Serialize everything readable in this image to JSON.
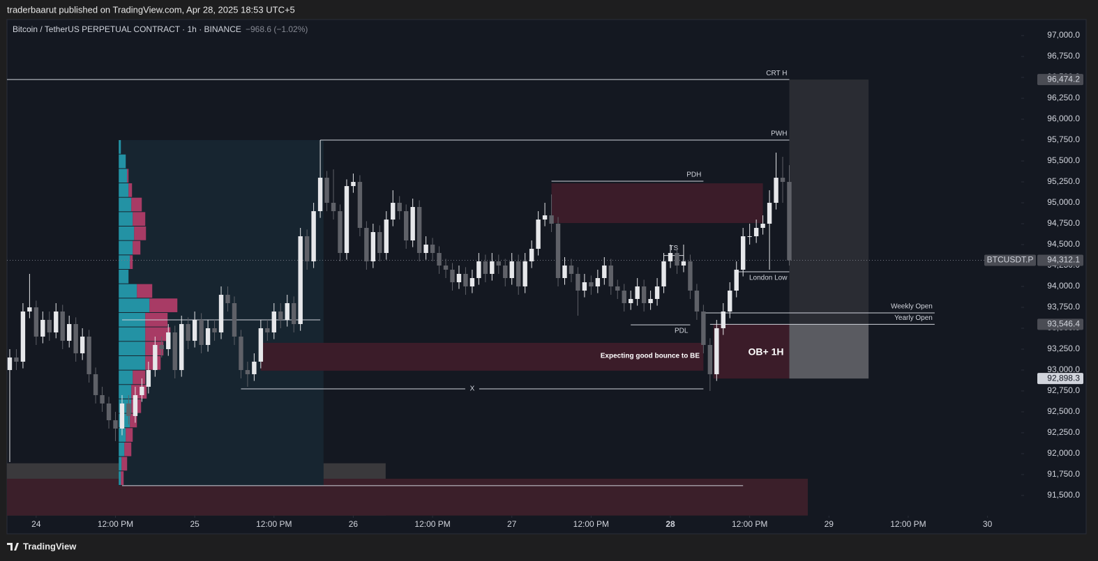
{
  "header": {
    "published": "traderbaarut published on TradingView.com, Apr 28, 2025 18:53 UTC+5"
  },
  "footer": {
    "brand": "TradingView"
  },
  "chart_data": {
    "type": "candlestick",
    "title": "Bitcoin / TetherUS PERPETUAL CONTRACT · 1h · BINANCE",
    "subtitle": "−968.6 (−1.02%)",
    "up_color": "#e6e7ea",
    "down_color": "#5f6168",
    "open": [
      93000,
      93150,
      93100,
      93700,
      93750,
      93400,
      93600,
      93450,
      93700,
      93350,
      93550,
      93200,
      93400,
      92950,
      92700,
      92600,
      92400,
      92300,
      92600,
      92450,
      92700,
      92800,
      93000,
      93300,
      93250,
      93450,
      93000,
      93550,
      93350,
      93600,
      93300,
      93500,
      93450,
      93900,
      93800,
      93400,
      93000,
      92950,
      93100,
      93500,
      93450,
      93700,
      93600,
      93800,
      93550,
      94600,
      94300,
      94900,
      95300,
      95000,
      94900,
      94400,
      95200,
      95250,
      94700,
      94300,
      94650,
      94400,
      94800,
      95000,
      94900,
      94550,
      94950,
      94400,
      94500,
      94400,
      94250,
      94200,
      94050,
      94150,
      94000,
      94100,
      94300,
      94150,
      94300,
      94250,
      94100,
      94300,
      94000,
      94300,
      94450,
      94800,
      94850,
      94750,
      94100,
      94250,
      94150,
      93950,
      94050,
      94000,
      94100,
      94250,
      94000,
      93950,
      93800,
      93850,
      94000,
      93800,
      93850,
      94000,
      94300,
      94400,
      94250,
      94300,
      93950,
      93700,
      93300,
      92950,
      93500,
      93700,
      93950,
      94200,
      94600,
      94600,
      94700,
      94750,
      95000,
      95300,
      95250
    ],
    "high": [
      93250,
      93250,
      93800,
      94150,
      93830,
      93700,
      93700,
      93800,
      93780,
      93650,
      93630,
      93500,
      93480,
      93030,
      92800,
      92680,
      92500,
      92700,
      92700,
      92800,
      92900,
      93100,
      93400,
      93400,
      93550,
      93530,
      93650,
      93630,
      93700,
      93680,
      93600,
      93600,
      94000,
      94000,
      93880,
      93480,
      93100,
      93200,
      93600,
      93600,
      93800,
      93800,
      93900,
      93880,
      94700,
      94680,
      95000,
      95750,
      95380,
      95400,
      94980,
      95280,
      95350,
      95330,
      94780,
      94750,
      94730,
      94900,
      95150,
      95080,
      94980,
      95050,
      95030,
      94600,
      94580,
      94480,
      94330,
      94280,
      94250,
      94230,
      94200,
      94400,
      94380,
      94400,
      94380,
      94330,
      94400,
      94380,
      94400,
      94550,
      94900,
      95000,
      95100,
      94830,
      94350,
      94330,
      94230,
      94150,
      94130,
      94200,
      94350,
      94330,
      94080,
      94030,
      93950,
      94100,
      94080,
      93950,
      94100,
      94400,
      94500,
      94480,
      94500,
      94380,
      94030,
      93780,
      93380,
      93600,
      93800,
      94050,
      94300,
      94700,
      94750,
      94800,
      94850,
      95150,
      95600,
      95550,
      95450
    ],
    "low": [
      91900,
      93000,
      93020,
      93620,
      93300,
      93320,
      93350,
      93380,
      93250,
      93270,
      93100,
      93120,
      92850,
      92600,
      92500,
      92300,
      92150,
      92220,
      92350,
      92370,
      92620,
      92720,
      92920,
      93150,
      93170,
      92900,
      92920,
      93250,
      93270,
      93200,
      93220,
      93350,
      93370,
      93700,
      93300,
      92900,
      92800,
      92870,
      93020,
      93350,
      93370,
      93500,
      93520,
      93450,
      93470,
      94200,
      94220,
      94820,
      94900,
      94800,
      94300,
      94320,
      95120,
      94600,
      94200,
      94220,
      94300,
      94320,
      94720,
      94800,
      94450,
      94470,
      94300,
      94320,
      94300,
      94150,
      94100,
      93950,
      93970,
      93900,
      93920,
      94020,
      94050,
      94070,
      94150,
      94000,
      94020,
      93900,
      93920,
      94220,
      94370,
      94720,
      94650,
      94000,
      94020,
      94050,
      93650,
      93870,
      93900,
      93920,
      94020,
      93900,
      93850,
      93700,
      93720,
      93770,
      93700,
      93720,
      93770,
      93920,
      94220,
      94150,
      94170,
      93850,
      93600,
      93200,
      92750,
      92870,
      93420,
      93620,
      93870,
      94120,
      94500,
      94520,
      94620,
      94200,
      94920,
      95000,
      94250
    ],
    "close": [
      93150,
      93100,
      93700,
      93750,
      93400,
      93600,
      93450,
      93700,
      93350,
      93550,
      93200,
      93400,
      92950,
      92700,
      92600,
      92400,
      92300,
      92600,
      92450,
      92700,
      92800,
      93000,
      93300,
      93250,
      93450,
      93000,
      93550,
      93350,
      93600,
      93300,
      93500,
      93450,
      93900,
      93800,
      93400,
      93000,
      92950,
      93100,
      93500,
      93450,
      93700,
      93600,
      93800,
      93550,
      94600,
      94300,
      94900,
      95300,
      95000,
      94900,
      94400,
      95200,
      95250,
      94700,
      94300,
      94650,
      94400,
      94800,
      95000,
      94900,
      94550,
      94950,
      94400,
      94500,
      94400,
      94250,
      94200,
      94050,
      94150,
      94000,
      94100,
      94300,
      94150,
      94300,
      94250,
      94100,
      94300,
      94000,
      94300,
      94450,
      94800,
      94850,
      94750,
      94100,
      94250,
      94150,
      93950,
      94050,
      94000,
      94100,
      94250,
      94000,
      93950,
      93800,
      93850,
      94000,
      93800,
      93850,
      94000,
      94300,
      94400,
      94250,
      94300,
      93950,
      93700,
      93300,
      92950,
      93500,
      93700,
      93950,
      94200,
      94600,
      94600,
      94700,
      94750,
      95000,
      95300,
      95250,
      94312.1
    ],
    "xlim": [
      -0.42,
      152.9
    ],
    "xticks": [
      {
        "value": 4,
        "label": "24"
      },
      {
        "value": 16,
        "label": "12:00 PM"
      },
      {
        "value": 28,
        "label": "25"
      },
      {
        "value": 40,
        "label": "12:00 PM"
      },
      {
        "value": 52,
        "label": "26"
      },
      {
        "value": 64,
        "label": "12:00 PM"
      },
      {
        "value": 76,
        "label": "27"
      },
      {
        "value": 88,
        "label": "12:00 PM"
      },
      {
        "value": 100,
        "label": "28"
      },
      {
        "value": 112,
        "label": "12:00 PM"
      },
      {
        "value": 124,
        "label": "29"
      },
      {
        "value": 136,
        "label": "12:00 PM"
      },
      {
        "value": 148,
        "label": "30"
      }
    ],
    "ylim": [
      91258,
      97192
    ],
    "yticks": [
      {
        "value": 91500,
        "label": "91,500.0"
      },
      {
        "value": 91750,
        "label": "91,750.0"
      },
      {
        "value": 92000,
        "label": "92,000.0"
      },
      {
        "value": 92250,
        "label": "92,250.0"
      },
      {
        "value": 92500,
        "label": "92,500.0"
      },
      {
        "value": 92750,
        "label": "92,750.0"
      },
      {
        "value": 93000,
        "label": "93,000.0"
      },
      {
        "value": 93250,
        "label": "93,250.0"
      },
      {
        "value": 93500,
        "label": "93,500.0"
      },
      {
        "value": 93750,
        "label": "93,750.0"
      },
      {
        "value": 94000,
        "label": "94,000.0"
      },
      {
        "value": 94250,
        "label": "94,250.0"
      },
      {
        "value": 94500,
        "label": "94,500.0"
      },
      {
        "value": 94750,
        "label": "94,750.0"
      },
      {
        "value": 95000,
        "label": "95,000.0"
      },
      {
        "value": 95250,
        "label": "95,250.0"
      },
      {
        "value": 95500,
        "label": "95,500.0"
      },
      {
        "value": 95750,
        "label": "95,750.0"
      },
      {
        "value": 96000,
        "label": "96,000.0"
      },
      {
        "value": 96250,
        "label": "96,250.0"
      },
      {
        "value": 96500,
        "label": "96,500.0"
      },
      {
        "value": 96750,
        "label": "96,750.0"
      },
      {
        "value": 97000,
        "label": "97,000.0"
      }
    ],
    "zones": [
      {
        "top": 91885,
        "bottom": 91260,
        "start": -0.42,
        "end": 56.9,
        "color": "#3a393c"
      },
      {
        "top": 91700,
        "bottom": 91260,
        "start": -0.42,
        "end": 120.8,
        "color": "#3b1f2a"
      },
      {
        "top": 95750,
        "bottom": 91617,
        "start": 16.5,
        "end": 47.5,
        "color": "#172530"
      },
      {
        "top": 95233,
        "bottom": 94758,
        "start": 82,
        "end": 114,
        "color": "#3b1c29"
      },
      {
        "top": 93325,
        "bottom": 92992,
        "start": 38,
        "end": 105,
        "color": "#3b1c29"
      },
      {
        "top": 93546.4,
        "bottom": 92898.3,
        "start": 106.5,
        "end": 118,
        "color": "#3b1c29"
      },
      {
        "top": 96474.2,
        "bottom": 93546.4,
        "start": 118,
        "end": 130,
        "color": "#2a2c33"
      },
      {
        "top": 93546.4,
        "bottom": 92898.3,
        "start": 118,
        "end": 130,
        "color": "#5a5b61"
      }
    ],
    "profile": {
      "top": 95750,
      "bottom": 91617,
      "start": 16.5,
      "buy_color": "#26a6b8",
      "sell_color": "#c2406e",
      "buy": [
        3,
        10,
        12,
        14,
        18,
        20,
        22,
        20,
        16,
        14,
        26,
        44,
        38,
        38,
        38,
        38,
        20,
        18,
        18,
        16,
        10,
        8,
        4,
        3
      ],
      "sell": [
        0,
        0,
        2,
        5,
        15,
        18,
        17,
        11,
        4,
        0,
        22,
        40,
        32,
        36,
        26,
        22,
        18,
        22,
        14,
        10,
        10,
        10,
        8,
        4
      ]
    },
    "levels": [
      {
        "label": "CRT H",
        "value": 96474.2,
        "start": -0.42,
        "end": 118
      },
      {
        "label": "PWH",
        "value": 95750,
        "start": 47,
        "end": 118
      },
      {
        "label": "PDH",
        "value": 95258,
        "start": 82,
        "end": 105
      },
      {
        "label": "TS",
        "value": 94370,
        "start": 99,
        "end": 102
      },
      {
        "label": "London Low",
        "value": 94175,
        "start": 110,
        "end": 118
      },
      {
        "label": "Weekly Open",
        "value": 93683,
        "start": 105,
        "end": 140
      },
      {
        "label": "Yearly Open",
        "value": 93546.4,
        "start": 106,
        "end": 140
      },
      {
        "label": "PDL",
        "value": 93541,
        "start": 94,
        "end": 103
      },
      {
        "value": 93600,
        "start": 17,
        "end": 47
      },
      {
        "label": "X",
        "value": 92775,
        "start": 35,
        "end": 105
      },
      {
        "value": 91617,
        "start": 17,
        "end": 111
      }
    ],
    "last_price": {
      "value": 94312.1,
      "label": "94,312.1",
      "symbol": "BTCUSDT.P"
    },
    "price_badges": [
      {
        "value": 96474.2,
        "label": "96,474.2"
      },
      {
        "value": 93546.4,
        "label": "93,546.4"
      },
      {
        "value": 92898.3,
        "label": "92,898.3"
      }
    ],
    "annotations": [
      "Expecting good bounce to BE",
      "OB+ 1H"
    ]
  }
}
